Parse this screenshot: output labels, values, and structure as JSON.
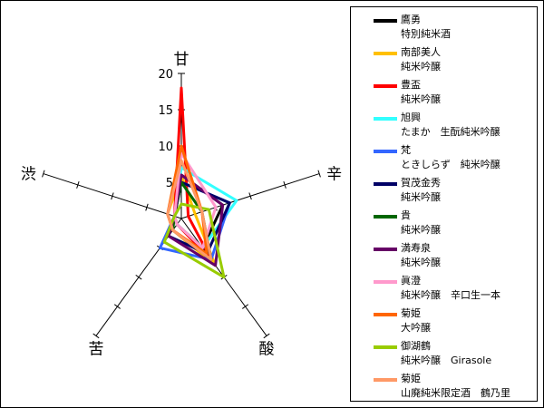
{
  "chart_data": {
    "type": "radar",
    "axes": [
      "甘",
      "辛",
      "酸",
      "苦",
      "渋"
    ],
    "rlim": [
      0,
      20
    ],
    "tick_labels": [
      "5",
      "10",
      "15",
      "20"
    ],
    "tick_values": [
      5,
      10,
      15,
      20
    ],
    "legend_position": "right",
    "series": [
      {
        "name": "鷹勇",
        "desc": "特別純米酒",
        "color": "#000000",
        "values": [
          6,
          6,
          5,
          1,
          1
        ]
      },
      {
        "name": "南部美人",
        "desc": "純米吟醸",
        "color": "#ffc000",
        "values": [
          6,
          2,
          8,
          2,
          2
        ]
      },
      {
        "name": "豊盃",
        "desc": "純米吟醸",
        "color": "#ff0000",
        "values": [
          18,
          1,
          7,
          1,
          1
        ]
      },
      {
        "name": "旭興",
        "desc": "たまか　生酛純米吟醸",
        "color": "#33ffff",
        "values": [
          7,
          8,
          5,
          1,
          1
        ]
      },
      {
        "name": "梵",
        "desc": "ときしらず　純米吟醸",
        "color": "#3366ff",
        "values": [
          5,
          7,
          7,
          5,
          1
        ]
      },
      {
        "name": "賀茂金秀",
        "desc": "純米吟醸",
        "color": "#000066",
        "values": [
          5,
          7,
          6,
          3,
          1
        ]
      },
      {
        "name": "貴",
        "desc": "純米吟醸",
        "color": "#006600",
        "values": [
          5,
          3,
          7,
          2,
          1
        ]
      },
      {
        "name": "満寿泉",
        "desc": "純米吟醸",
        "color": "#660066",
        "values": [
          6,
          6,
          8,
          3,
          1
        ]
      },
      {
        "name": "眞澄",
        "desc": "純米吟醸　辛口生一本",
        "color": "#ff99cc",
        "values": [
          9,
          5,
          5,
          1,
          1
        ]
      },
      {
        "name": "菊姫",
        "desc": "大吟醸",
        "color": "#ff6600",
        "values": [
          10,
          3,
          6,
          2,
          2
        ]
      },
      {
        "name": "御湖鶴",
        "desc": "純米吟醸　Girasole",
        "color": "#99cc00",
        "values": [
          2,
          4,
          10,
          4,
          1
        ]
      },
      {
        "name": "菊姫",
        "desc": "山廃純米限定酒　鶴乃里",
        "color": "#ff9966",
        "values": [
          8,
          3,
          7,
          2,
          2
        ]
      }
    ]
  }
}
